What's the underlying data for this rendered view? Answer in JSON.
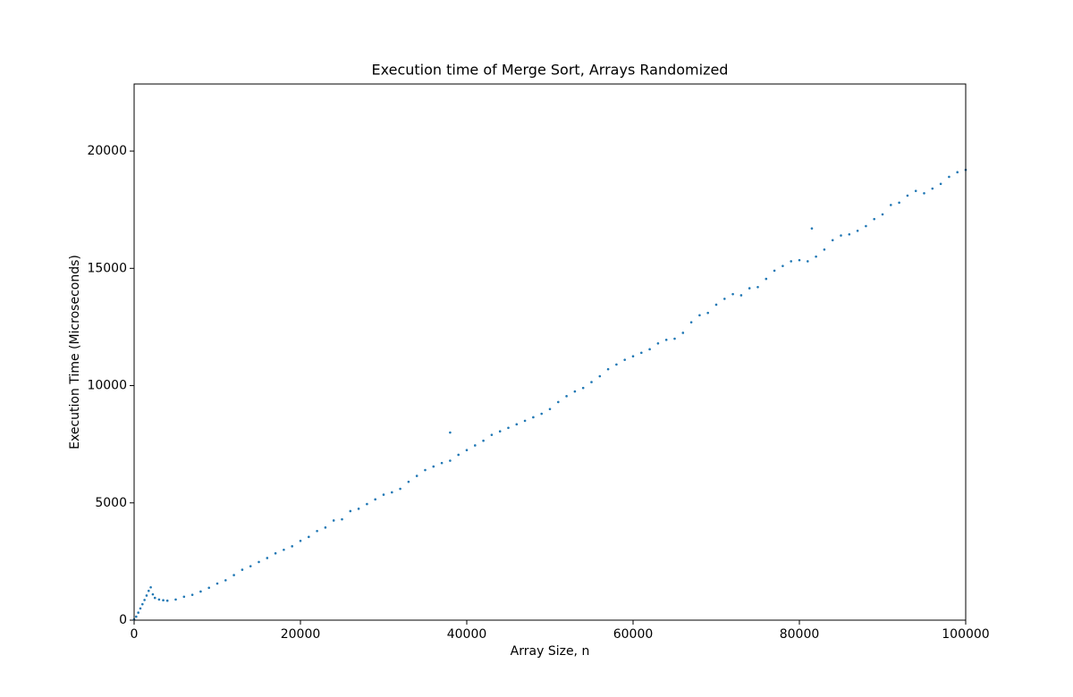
{
  "chart_data": {
    "type": "scatter",
    "title": "Execution time of Merge Sort, Arrays Randomized",
    "x_label": "Array Size, n",
    "y_label": "Execution Time (Microseconds)",
    "color": "#1f77b4",
    "xlim": [
      0,
      100000
    ],
    "ylim": [
      0,
      22860
    ],
    "xticks": [
      0,
      20000,
      40000,
      60000,
      80000,
      100000
    ],
    "yticks": [
      0,
      5000,
      10000,
      15000,
      20000
    ],
    "x": [
      0,
      250,
      500,
      750,
      1000,
      1250,
      1500,
      1750,
      2000,
      2250,
      2500,
      3000,
      3500,
      4000,
      5000,
      6000,
      7000,
      8000,
      9000,
      10000,
      11000,
      12000,
      13000,
      14000,
      15000,
      16000,
      17000,
      18000,
      19000,
      20000,
      21000,
      22000,
      23000,
      24000,
      25000,
      26000,
      27000,
      28000,
      29000,
      30000,
      31000,
      32000,
      33000,
      34000,
      35000,
      36000,
      37000,
      38000,
      39000,
      40000,
      41000,
      42000,
      43000,
      44000,
      45000,
      46000,
      47000,
      48000,
      49000,
      50000,
      51000,
      52000,
      53000,
      54000,
      55000,
      56000,
      57000,
      58000,
      59000,
      60000,
      61000,
      62000,
      63000,
      64000,
      65000,
      66000,
      67000,
      68000,
      69000,
      70000,
      71000,
      72000,
      73000,
      74000,
      75000,
      76000,
      77000,
      78000,
      79000,
      80000,
      81000,
      82000,
      83000,
      84000,
      85000,
      86000,
      87000,
      88000,
      89000,
      90000,
      91000,
      92000,
      93000,
      94000,
      95000,
      96000,
      97000,
      98000,
      99000,
      100000,
      38000,
      81500
    ],
    "values": [
      30,
      150,
      320,
      500,
      680,
      860,
      1050,
      1250,
      1400,
      1100,
      950,
      880,
      850,
      830,
      880,
      1000,
      1080,
      1220,
      1380,
      1560,
      1700,
      1920,
      2150,
      2300,
      2480,
      2650,
      2850,
      3000,
      3150,
      3380,
      3550,
      3800,
      3950,
      4250,
      4300,
      4650,
      4750,
      4950,
      5150,
      5350,
      5450,
      5600,
      5900,
      6150,
      6400,
      6550,
      6700,
      6800,
      7050,
      7250,
      7450,
      7650,
      7900,
      8050,
      8200,
      8350,
      8500,
      8650,
      8800,
      9000,
      9300,
      9550,
      9750,
      9900,
      10150,
      10400,
      10700,
      10900,
      11100,
      11250,
      11400,
      11550,
      11800,
      11950,
      12000,
      12250,
      12700,
      13000,
      13100,
      13450,
      13700,
      13900,
      13850,
      14150,
      14200,
      14550,
      14900,
      15100,
      15300,
      15350,
      15300,
      15500,
      15800,
      16200,
      16400,
      16450,
      16600,
      16800,
      17100,
      17300,
      17700,
      17800,
      18100,
      18300,
      18200,
      18400,
      18600,
      18900,
      19100,
      19200,
      8000,
      16700
    ]
  }
}
